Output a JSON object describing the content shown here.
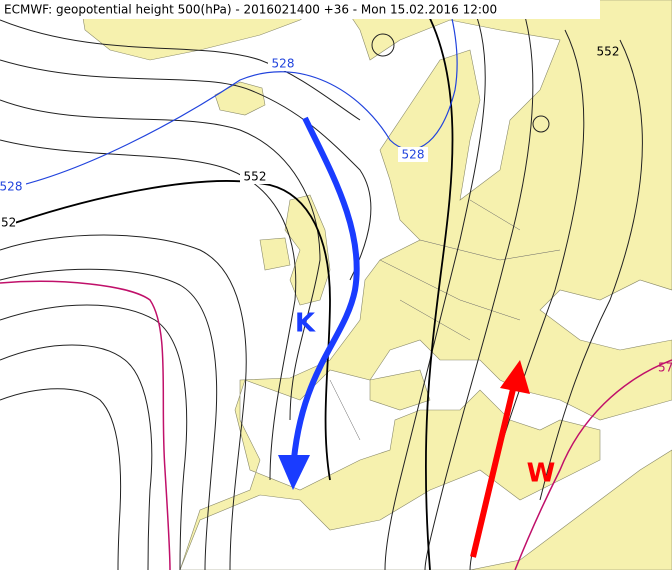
{
  "header": {
    "title": "ECMWF: geopotential height 500(hPa) - 2016021400 +36 - Mon 15.02.2016 12:00"
  },
  "contour_labels": [
    "528",
    "528",
    "528",
    "552",
    "552",
    "52",
    "57"
  ],
  "annotations": {
    "cold_arrow": "K",
    "warm_arrow": "W"
  }
}
